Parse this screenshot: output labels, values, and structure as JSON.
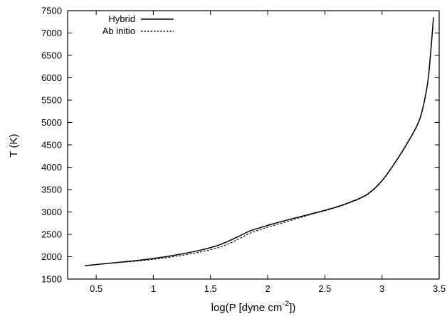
{
  "chart_data": {
    "type": "line",
    "xlabel_main": "log(P [dyne cm",
    "xlabel_sup": "-2",
    "xlabel_tail": "])",
    "ylabel": "T (K)",
    "xlim": [
      0.25,
      3.5
    ],
    "ylim": [
      1500,
      7500
    ],
    "xticks": [
      0.5,
      1,
      1.5,
      2,
      2.5,
      3,
      3.5
    ],
    "xtick_labels": [
      "0.5",
      "1",
      "1.5",
      "2",
      "2.5",
      "3",
      "3.5"
    ],
    "yticks": [
      1500,
      2000,
      2500,
      3000,
      3500,
      4000,
      4500,
      5000,
      5500,
      6000,
      6500,
      7000,
      7500
    ],
    "ytick_labels": [
      "1500",
      "2000",
      "2500",
      "3000",
      "3500",
      "4000",
      "4500",
      "5000",
      "5500",
      "6000",
      "6500",
      "7000",
      "7500"
    ],
    "legend_position": "top-left",
    "series": [
      {
        "name": "Hybrid",
        "style": "solid",
        "color": "#000000",
        "x": [
          0.4,
          0.6,
          0.8,
          1.0,
          1.2,
          1.4,
          1.55,
          1.65,
          1.75,
          1.85,
          2.0,
          2.2,
          2.4,
          2.6,
          2.8,
          2.9,
          3.0,
          3.1,
          3.2,
          3.3,
          3.35,
          3.4,
          3.43,
          3.45
        ],
        "y": [
          1800,
          1850,
          1900,
          1960,
          2040,
          2140,
          2240,
          2340,
          2460,
          2580,
          2700,
          2840,
          2970,
          3110,
          3300,
          3450,
          3700,
          4050,
          4450,
          4900,
          5250,
          5900,
          6700,
          7350
        ]
      },
      {
        "name": "Ab initio",
        "style": "dashed",
        "color": "#000000",
        "x": [
          0.45,
          0.6,
          0.8,
          1.0,
          1.2,
          1.4,
          1.55,
          1.65,
          1.75,
          1.85,
          2.0,
          2.2,
          2.4,
          2.6,
          2.8,
          2.9,
          3.0,
          3.1,
          3.2,
          3.3,
          3.35,
          3.4,
          3.43,
          3.45
        ],
        "y": [
          1810,
          1850,
          1890,
          1940,
          2010,
          2100,
          2190,
          2280,
          2400,
          2530,
          2660,
          2810,
          2960,
          3100,
          3290,
          3440,
          3690,
          4040,
          4440,
          4890,
          5240,
          5890,
          6690,
          7340
        ]
      }
    ]
  }
}
